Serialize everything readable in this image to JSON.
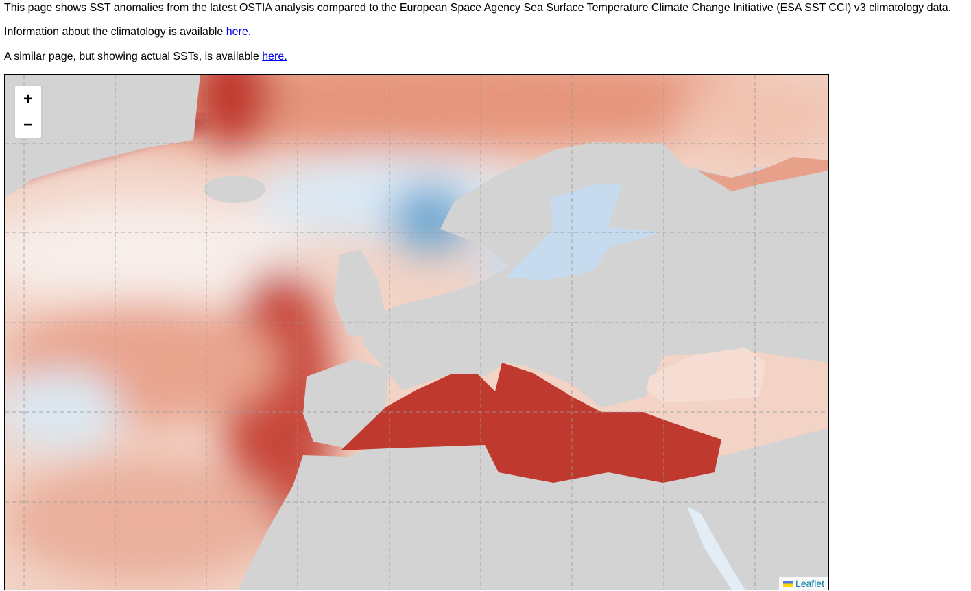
{
  "paragraphs": [
    {
      "text": "This page shows SST anomalies from the latest OSTIA analysis compared to the European Space Agency Sea Surface Temperature Climate Change Initiative (ESA SST CCI) v3 climatology data."
    },
    {
      "text": "Information about the climatology is available ",
      "link": "here."
    },
    {
      "text": "A similar page, but showing actual SSTs, is available ",
      "link": "here."
    }
  ],
  "map": {
    "zoom_in": "+",
    "zoom_out": "−",
    "attribution": "Leaflet"
  }
}
